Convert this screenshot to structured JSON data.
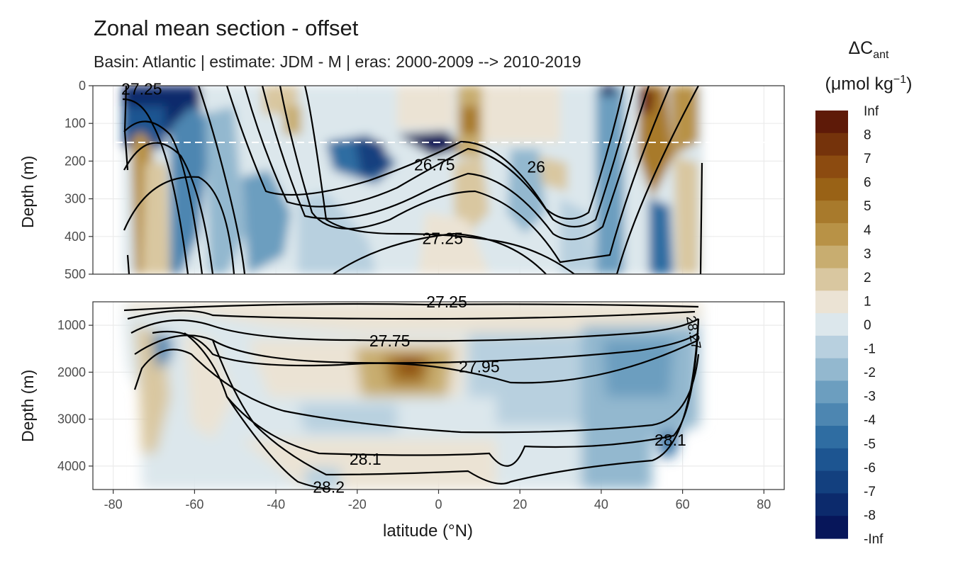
{
  "chart_data": {
    "type": "heatmap",
    "title": "Zonal mean section - offset",
    "subtitle": "Basin: Atlantic | estimate: JDM - M | eras: 2000-2009 --> 2010-2019",
    "xlabel": "latitude (°N)",
    "xlim": [
      -85,
      85
    ],
    "x_ticks": [
      "-80",
      "-60",
      "-40",
      "-20",
      "0",
      "20",
      "40",
      "60",
      "80"
    ],
    "panels": [
      {
        "name": "upper",
        "ylabel": "Depth (m)",
        "ylim": [
          0,
          500
        ],
        "y_ticks": [
          "0",
          "100",
          "200",
          "300",
          "400",
          "500"
        ],
        "mld_line_depth": 150,
        "contour_labels": [
          {
            "text": "27.25",
            "lat": -73,
            "depth": 8
          },
          {
            "text": "26.75",
            "lat": -1,
            "depth": 210
          },
          {
            "text": "26",
            "lat": 24,
            "depth": 215
          },
          {
            "text": "27.25",
            "lat": 1,
            "depth": 405
          }
        ]
      },
      {
        "name": "lower",
        "ylabel": "Depth (m)",
        "ylim": [
          500,
          4500
        ],
        "y_ticks": [
          "1000",
          "2000",
          "3000",
          "4000"
        ],
        "contour_labels": [
          {
            "text": "27.25",
            "lat": 2,
            "depth": 500
          },
          {
            "text": "27.75",
            "lat": -12,
            "depth": 1330
          },
          {
            "text": "27.95",
            "lat": 10,
            "depth": 1880
          },
          {
            "text": "28.1",
            "lat": -18,
            "depth": 3850
          },
          {
            "text": "28.1",
            "lat": 57,
            "depth": 3440
          },
          {
            "text": "28.2",
            "lat": -27,
            "depth": 4450
          },
          {
            "text": "28.27",
            "lat": 63,
            "depth": 1150
          }
        ]
      }
    ],
    "legend": {
      "title_main": "ΔC",
      "title_sub": "ant",
      "unit_main": "(μmol kg",
      "unit_sup": "−1",
      "unit_close": ")",
      "labels": [
        "Inf",
        "8",
        "7",
        "6",
        "5",
        "4",
        "3",
        "2",
        "1",
        "0",
        "-1",
        "-2",
        "-3",
        "-4",
        "-5",
        "-6",
        "-7",
        "-8",
        "-Inf"
      ],
      "colors": [
        "#5e1a08",
        "#75330b",
        "#8c4b10",
        "#996216",
        "#a87a2c",
        "#b89246",
        "#c8ad70",
        "#d9c7a0",
        "#ebe3d4",
        "#dce7ec",
        "#b8d0df",
        "#93b8cf",
        "#6c9ebf",
        "#4d86b1",
        "#2f6da2",
        "#1d5591",
        "#13407f",
        "#0c2a6c",
        "#07165a"
      ]
    }
  }
}
